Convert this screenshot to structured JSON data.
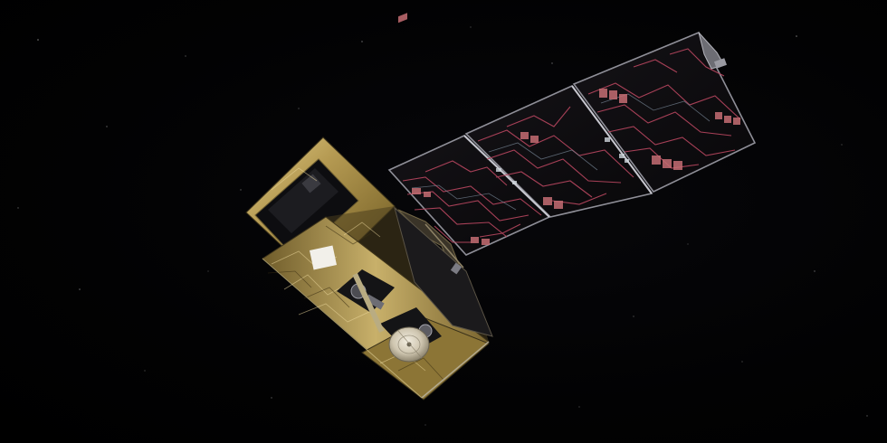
{
  "scene": {
    "subject": "satellite-in-space",
    "background_color": "#000000",
    "colors": {
      "gold_foil_light": "#d8c27a",
      "gold_foil_mid": "#a88f4a",
      "gold_foil_dark": "#4f4220",
      "panel_base": "#0c0b0d",
      "panel_frame": "#9a9aa2",
      "circuit_trace": "#c0506a",
      "circuit_cell": "#d07a7a",
      "antenna_dish": "#d9d2c0"
    }
  }
}
